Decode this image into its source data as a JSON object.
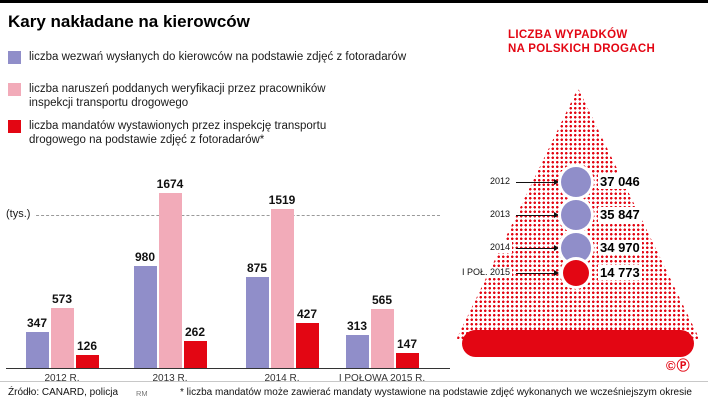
{
  "page": {
    "title": "Kary nakładane na kierowców"
  },
  "legend": [
    {
      "label": "liczba wezwań wysłanych do kierowców na podstawie zdjęć z fotoradarów",
      "color": "#908ec9"
    },
    {
      "label": "liczba naruszeń poddanych weryfikacji przez pracowników inspekcji transportu drogowego",
      "color": "#f2abb9"
    },
    {
      "label": "liczba mandatów wystawionych przez inspekcję transportu drogowego na podstawie zdjęć z fotoradarów*",
      "color": "#e30613"
    }
  ],
  "chart_data": {
    "type": "bar",
    "title": "Kary nakładane na kierowców",
    "unit": "(tys.)",
    "ylabel": "(tys.)",
    "ylim": [
      0,
      1750
    ],
    "grid": "single dashed top gridline",
    "legend_position": "top-left",
    "categories": [
      "2012 R.",
      "2013 R.",
      "2014 R.",
      "I POŁOWA 2015 R."
    ],
    "series": [
      {
        "name": "liczba wezwań wysłanych do kierowców na podstawie zdjęć z fotoradarów",
        "color": "#908ec9",
        "values": [
          347,
          980,
          875,
          313
        ]
      },
      {
        "name": "liczba naruszeń poddanych weryfikacji przez pracowników inspekcji transportu drogowego",
        "color": "#f2abb9",
        "values": [
          573,
          1674,
          1519,
          565
        ]
      },
      {
        "name": "liczba mandatów wystawionych przez inspekcję transportu drogowego na podstawie zdjęć z fotoradarów*",
        "color": "#e30613",
        "values": [
          126,
          262,
          427,
          147
        ]
      }
    ]
  },
  "accidents": {
    "title_line1": "LICZBA WYPADKÓW",
    "title_line2": "NA POLSKICH DROGACH",
    "accent_color": "#e30613",
    "items": [
      {
        "year": "2012",
        "value": "37 046",
        "color": "#908ec9"
      },
      {
        "year": "2013",
        "value": "35 847",
        "color": "#908ec9"
      },
      {
        "year": "2014",
        "value": "34 970",
        "color": "#908ec9"
      },
      {
        "year": "I POŁ. 2015",
        "value": "14 773",
        "color": "#e30613"
      }
    ]
  },
  "footer": {
    "source": "Źródło: CANARD, policja",
    "credit": "RM",
    "footnote": "* liczba mandatów może zawierać mandaty wystawione na podstawie zdjęć wykonanych we wcześniejszym okresie",
    "copyright": "©Ⓟ"
  }
}
